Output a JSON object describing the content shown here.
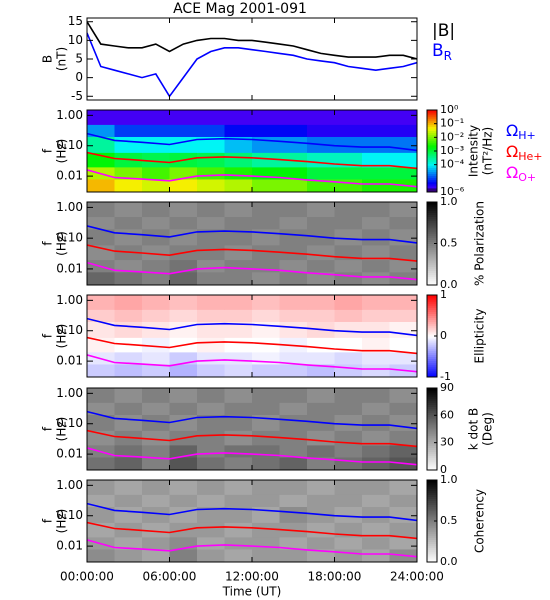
{
  "chart_data": [
    {
      "type": "line",
      "title": "ACE Mag 2001-091",
      "ylabel": [
        "B",
        "(nT)"
      ],
      "xlim": [
        0,
        24
      ],
      "ylim": [
        -6,
        16
      ],
      "yticks": [
        -5,
        0,
        5,
        10,
        15
      ],
      "x": [
        0,
        1,
        2,
        3,
        4,
        5,
        6,
        7,
        8,
        9,
        10,
        11,
        12,
        13,
        14,
        15,
        16,
        17,
        18,
        19,
        20,
        21,
        22,
        23,
        24
      ],
      "series": [
        {
          "name": "|B|",
          "color": "#000000",
          "values": [
            15,
            9,
            8.5,
            8,
            8,
            9,
            7,
            9,
            10,
            10.5,
            10.5,
            10,
            10,
            9.5,
            9,
            8.5,
            7.5,
            6.5,
            6,
            5.5,
            5.5,
            5.5,
            6,
            6,
            5
          ]
        },
        {
          "name": "B",
          "name_subscript": "R",
          "color": "#0000ff",
          "values": [
            12,
            3,
            2,
            1,
            0,
            1,
            -5,
            0,
            5,
            7,
            8,
            8,
            7.5,
            7,
            6.5,
            6,
            5,
            4.5,
            4,
            3,
            2.5,
            2,
            2.5,
            3,
            4
          ]
        }
      ]
    },
    {
      "type": "spectrogram",
      "ylabel": [
        "f",
        "(Hz)"
      ],
      "xlim": [
        0,
        24
      ],
      "ylim": [
        0.003,
        1.5
      ],
      "log_y": true,
      "yticks": [
        {
          "value": 1,
          "label": "1.00"
        },
        {
          "value": 0.1,
          "label": "0.10"
        },
        {
          "value": 0.01,
          "label": "0.01"
        }
      ],
      "xbins": [
        0,
        2,
        4,
        6,
        8,
        10,
        12,
        14,
        16,
        18,
        20,
        22,
        24
      ],
      "ybins": [
        0.003,
        0.008,
        0.02,
        0.06,
        0.2,
        0.5,
        1.5
      ],
      "z": [
        [
          0.1,
          0.05,
          0.03,
          0.05,
          0.03,
          0.02,
          0.01,
          0.01,
          0.005,
          0.005,
          0.003,
          0.003
        ],
        [
          0.02,
          0.01,
          0.005,
          0.01,
          0.005,
          0.003,
          0.002,
          0.002,
          0.001,
          0.001,
          0.001,
          0.001
        ],
        [
          0.002,
          0.001,
          0.0008,
          0.001,
          0.0008,
          0.0005,
          0.0003,
          0.0003,
          0.0002,
          0.0002,
          0.0001,
          0.0001
        ],
        [
          0.0003,
          0.0001,
          0.0001,
          0.0001,
          0.0001,
          5e-05,
          3e-05,
          3e-05,
          2e-05,
          2e-05,
          2e-05,
          2e-05
        ],
        [
          3e-05,
          1e-05,
          1e-05,
          1e-05,
          1e-05,
          5e-06,
          5e-06,
          5e-06,
          3e-06,
          3e-06,
          3e-06,
          3e-06
        ],
        [
          2e-06,
          2e-06,
          2e-06,
          2e-06,
          2e-06,
          2e-06,
          2e-06,
          2e-06,
          2e-06,
          2e-06,
          2e-06,
          2e-06
        ]
      ],
      "zlim": [
        1e-06,
        1
      ],
      "log_z": true,
      "colormap": "rainbow",
      "zticks": [
        {
          "value": 1,
          "label": "10⁰"
        },
        {
          "value": 0.1,
          "label": "10⁻¹"
        },
        {
          "value": 0.01,
          "label": "10⁻²"
        },
        {
          "value": 0.001,
          "label": "10⁻³"
        },
        {
          "value": 0.0001,
          "label": "10⁻⁴"
        },
        {
          "value": 1e-06,
          "label": "10⁻⁶"
        }
      ],
      "zlabel": [
        "Intensity",
        "(nT²/Hz)"
      ],
      "x": [
        0,
        2,
        4,
        6,
        8,
        10,
        12,
        14,
        16,
        18,
        20,
        22,
        24
      ],
      "series": [
        {
          "name": "Ω",
          "name_subscript": "H+",
          "color": "#0000ff",
          "values": [
            0.25,
            0.15,
            0.13,
            0.11,
            0.16,
            0.17,
            0.16,
            0.14,
            0.12,
            0.1,
            0.09,
            0.09,
            0.07
          ]
        },
        {
          "name": "Ω",
          "name_subscript": "He+",
          "color": "#ff0000",
          "values": [
            0.06,
            0.038,
            0.033,
            0.028,
            0.04,
            0.043,
            0.04,
            0.035,
            0.03,
            0.025,
            0.022,
            0.022,
            0.018
          ]
        },
        {
          "name": "Ω",
          "name_subscript": "O+",
          "color": "#ff00ff",
          "values": [
            0.016,
            0.009,
            0.008,
            0.007,
            0.01,
            0.011,
            0.01,
            0.009,
            0.0075,
            0.0065,
            0.0055,
            0.0055,
            0.0045
          ]
        }
      ]
    },
    {
      "type": "spectrogram",
      "ylabel": [
        "f",
        "(Hz)"
      ],
      "xlim": [
        0,
        24
      ],
      "ylim": [
        0.003,
        1.5
      ],
      "log_y": true,
      "yticks": [
        {
          "value": 1,
          "label": "1.00"
        },
        {
          "value": 0.1,
          "label": "0.10"
        },
        {
          "value": 0.01,
          "label": "0.01"
        }
      ],
      "xbins": [
        0,
        2,
        4,
        6,
        8,
        10,
        12,
        14,
        16,
        18,
        20,
        22,
        24
      ],
      "ybins": [
        0.003,
        0.008,
        0.02,
        0.06,
        0.2,
        0.5,
        1.5
      ],
      "z": [
        [
          0.6,
          0.55,
          0.5,
          0.6,
          0.5,
          0.5,
          0.45,
          0.5,
          0.45,
          0.5,
          0.45,
          0.5
        ],
        [
          0.5,
          0.45,
          0.5,
          0.55,
          0.45,
          0.5,
          0.5,
          0.45,
          0.5,
          0.45,
          0.5,
          0.45
        ],
        [
          0.45,
          0.5,
          0.45,
          0.5,
          0.5,
          0.45,
          0.5,
          0.5,
          0.45,
          0.5,
          0.45,
          0.5
        ],
        [
          0.5,
          0.45,
          0.5,
          0.45,
          0.5,
          0.5,
          0.45,
          0.5,
          0.5,
          0.45,
          0.5,
          0.45
        ],
        [
          0.45,
          0.5,
          0.45,
          0.5,
          0.45,
          0.5,
          0.5,
          0.45,
          0.5,
          0.5,
          0.45,
          0.5
        ],
        [
          0.5,
          0.45,
          0.5,
          0.45,
          0.5,
          0.45,
          0.5,
          0.5,
          0.45,
          0.5,
          0.5,
          0.45
        ]
      ],
      "zlim": [
        0,
        1
      ],
      "colormap": "gray_r",
      "zticks": [
        {
          "value": 1,
          "label": "1.0"
        },
        {
          "value": 0.5,
          "label": "0.5"
        },
        {
          "value": 0,
          "label": "0.0"
        }
      ],
      "zlabel": [
        "% Polarization"
      ]
    },
    {
      "type": "spectrogram",
      "ylabel": [
        "f",
        "(Hz)"
      ],
      "xlim": [
        0,
        24
      ],
      "ylim": [
        0.003,
        1.5
      ],
      "log_y": true,
      "yticks": [
        {
          "value": 1,
          "label": "1.00"
        },
        {
          "value": 0.1,
          "label": "0.10"
        },
        {
          "value": 0.01,
          "label": "0.01"
        }
      ],
      "xbins": [
        0,
        2,
        4,
        6,
        8,
        10,
        12,
        14,
        16,
        18,
        20,
        22,
        24
      ],
      "ybins": [
        0.003,
        0.008,
        0.02,
        0.06,
        0.2,
        0.5,
        1.5
      ],
      "z": [
        [
          -0.2,
          -0.25,
          -0.2,
          -0.3,
          -0.2,
          -0.15,
          -0.2,
          -0.2,
          -0.25,
          -0.2,
          -0.15,
          -0.2
        ],
        [
          -0.1,
          -0.15,
          -0.1,
          -0.2,
          -0.1,
          -0.1,
          -0.05,
          -0.1,
          -0.1,
          -0.15,
          -0.1,
          -0.1
        ],
        [
          0.05,
          0,
          -0.05,
          0,
          0.05,
          0,
          0,
          -0.05,
          0,
          0,
          0.05,
          0
        ],
        [
          0.1,
          0.15,
          0.1,
          0.05,
          0.1,
          0.1,
          0.05,
          0.1,
          0.15,
          0.1,
          0.1,
          0.05
        ],
        [
          0.2,
          0.25,
          0.2,
          0.15,
          0.2,
          0.2,
          0.15,
          0.2,
          0.2,
          0.25,
          0.2,
          0.2
        ],
        [
          0.3,
          0.35,
          0.3,
          0.25,
          0.3,
          0.3,
          0.25,
          0.3,
          0.3,
          0.35,
          0.3,
          0.3
        ]
      ],
      "zlim": [
        -1,
        1
      ],
      "colormap": "bwr",
      "zticks": [
        1,
        0,
        -1
      ],
      "zlabel": [
        "Ellipticity"
      ]
    },
    {
      "type": "spectrogram",
      "ylabel": [
        "f",
        "(Hz)"
      ],
      "xlim": [
        0,
        24
      ],
      "ylim": [
        0.003,
        1.5
      ],
      "log_y": true,
      "yticks": [
        {
          "value": 1,
          "label": "1.00"
        },
        {
          "value": 0.1,
          "label": "0.10"
        },
        {
          "value": 0.01,
          "label": "0.01"
        }
      ],
      "xbins": [
        0,
        2,
        4,
        6,
        8,
        10,
        12,
        14,
        16,
        18,
        20,
        22,
        24
      ],
      "ybins": [
        0.003,
        0.008,
        0.02,
        0.06,
        0.2,
        0.5,
        1.5
      ],
      "z": [
        [
          50,
          55,
          45,
          60,
          50,
          45,
          50,
          55,
          45,
          50,
          55,
          60
        ],
        [
          45,
          50,
          45,
          55,
          45,
          50,
          50,
          45,
          50,
          45,
          50,
          55
        ],
        [
          40,
          45,
          40,
          45,
          45,
          40,
          45,
          45,
          40,
          45,
          40,
          45
        ],
        [
          45,
          40,
          45,
          40,
          45,
          45,
          40,
          45,
          45,
          40,
          45,
          40
        ],
        [
          40,
          45,
          40,
          45,
          40,
          45,
          45,
          40,
          45,
          45,
          40,
          45
        ],
        [
          45,
          40,
          45,
          40,
          45,
          40,
          45,
          45,
          40,
          45,
          45,
          40
        ]
      ],
      "zlim": [
        0,
        90
      ],
      "colormap": "gray_r",
      "zticks": [
        90,
        60,
        30,
        0
      ],
      "zlabel": [
        "k dot B",
        "(Deg)"
      ]
    },
    {
      "type": "spectrogram",
      "ylabel": [
        "f",
        "(Hz)"
      ],
      "xlim": [
        0,
        24
      ],
      "ylim": [
        0.003,
        1.5
      ],
      "log_y": true,
      "yticks": [
        {
          "value": 1,
          "label": "1.00"
        },
        {
          "value": 0.1,
          "label": "0.10"
        },
        {
          "value": 0.01,
          "label": "0.01"
        }
      ],
      "xbins": [
        0,
        2,
        4,
        6,
        8,
        10,
        12,
        14,
        16,
        18,
        20,
        22,
        24
      ],
      "ybins": [
        0.003,
        0.008,
        0.02,
        0.06,
        0.2,
        0.5,
        1.5
      ],
      "z": [
        [
          0.45,
          0.4,
          0.35,
          0.5,
          0.4,
          0.35,
          0.4,
          0.4,
          0.35,
          0.4,
          0.35,
          0.45
        ],
        [
          0.4,
          0.35,
          0.4,
          0.45,
          0.35,
          0.4,
          0.4,
          0.35,
          0.4,
          0.35,
          0.4,
          0.35
        ],
        [
          0.35,
          0.4,
          0.35,
          0.4,
          0.4,
          0.35,
          0.4,
          0.4,
          0.35,
          0.4,
          0.35,
          0.4
        ],
        [
          0.4,
          0.35,
          0.4,
          0.35,
          0.4,
          0.4,
          0.35,
          0.45,
          0.4,
          0.35,
          0.4,
          0.35
        ],
        [
          0.35,
          0.4,
          0.35,
          0.4,
          0.35,
          0.4,
          0.4,
          0.35,
          0.4,
          0.4,
          0.35,
          0.4
        ],
        [
          0.4,
          0.35,
          0.4,
          0.35,
          0.4,
          0.35,
          0.4,
          0.4,
          0.35,
          0.4,
          0.4,
          0.35
        ]
      ],
      "zlim": [
        0,
        1
      ],
      "colormap": "gray_r",
      "zticks": [
        {
          "value": 1,
          "label": "1.0"
        },
        {
          "value": 0.5,
          "label": "0.5"
        },
        {
          "value": 0,
          "label": "0.0"
        }
      ],
      "zlabel": [
        "Coherency"
      ],
      "xticks": [
        {
          "value": 0,
          "label": "00:00:00"
        },
        {
          "value": 6,
          "label": "06:00:00"
        },
        {
          "value": 12,
          "label": "12:00:00"
        },
        {
          "value": 18,
          "label": "18:00:00"
        },
        {
          "value": 24,
          "label": "24:00:00"
        }
      ],
      "xlabel": "Time (UT)"
    }
  ]
}
